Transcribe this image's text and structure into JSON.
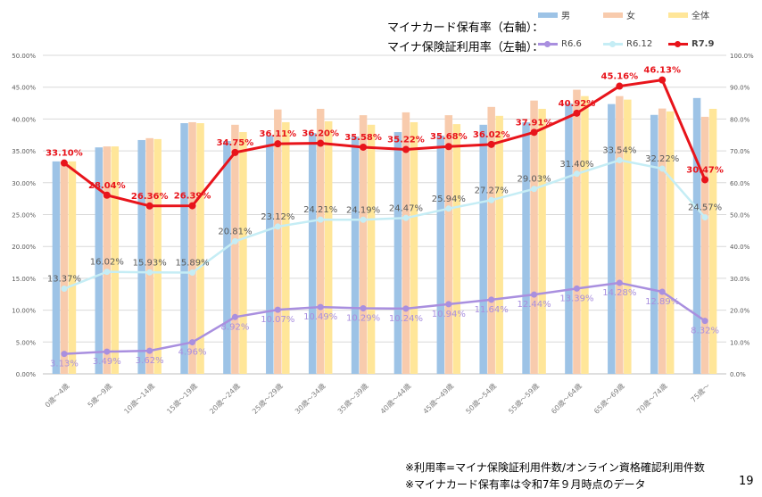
{
  "legend": {
    "bar_title": "マイナカード保有率（右軸）：",
    "line_title": "マイナ保険証利用率（左軸）：",
    "bars": [
      {
        "name": "男",
        "color": "#9DC3E6"
      },
      {
        "name": "女",
        "color": "#F8CBAD"
      },
      {
        "name": "全体",
        "color": "#FFE699"
      }
    ],
    "lines": [
      {
        "name": "R6.6",
        "color": "#A98FDF"
      },
      {
        "name": "R6.12",
        "color": "#C5EDF5"
      },
      {
        "name": "R7.9",
        "color": "#E8141B"
      }
    ]
  },
  "footnotes": [
    "※利用率=マイナ保険証利用件数/オンライン資格確認利用件数",
    "※マイナカード保有率は令和7年９月時点のデータ"
  ],
  "page_number": "19",
  "chart_data": {
    "type": "bar+line",
    "categories": [
      "0歳～4歳",
      "5歳～9歳",
      "10歳～14歳",
      "15歳～19歳",
      "20歳～24歳",
      "25歳～29歳",
      "30歳～34歳",
      "35歳～39歳",
      "40歳～44歳",
      "45歳～49歳",
      "50歳～54歳",
      "55歳～59歳",
      "60歳～64歳",
      "65歳～69歳",
      "70歳～74歳",
      "75歳～"
    ],
    "left_axis": {
      "range": [
        0,
        50
      ],
      "ticks": [
        "0.00%",
        "5.00%",
        "10.00%",
        "15.00%",
        "20.00%",
        "25.00%",
        "30.00%",
        "35.00%",
        "40.00%",
        "45.00%",
        "50.00%"
      ]
    },
    "right_axis": {
      "range": [
        0,
        100
      ],
      "ticks": [
        "0.0%",
        "10.0%",
        "20.0%",
        "30.0%",
        "40.0%",
        "50.0%",
        "60.0%",
        "70.0%",
        "80.0%",
        "90.0%",
        "100.0%"
      ]
    },
    "grid": true,
    "bar_series": [
      {
        "name": "男",
        "axis": "right",
        "values": [
          66.7,
          71.1,
          73.4,
          78.7,
          73.1,
          74.9,
          75.6,
          74.5,
          75.9,
          74.8,
          78.2,
          79.0,
          84.9,
          84.7,
          81.3,
          86.6
        ]
      },
      {
        "name": "女",
        "axis": "right",
        "values": [
          66.7,
          71.4,
          74.0,
          79.0,
          78.2,
          83.0,
          83.2,
          81.2,
          82.1,
          81.2,
          83.8,
          85.8,
          89.2,
          87.2,
          83.3,
          80.7
        ]
      },
      {
        "name": "全体",
        "axis": "right",
        "values": [
          66.7,
          71.4,
          73.7,
          78.7,
          75.9,
          79.0,
          79.3,
          78.2,
          79.0,
          78.4,
          81.0,
          83.2,
          87.2,
          86.1,
          82.4,
          83.2
        ]
      }
    ],
    "line_series": [
      {
        "name": "R6.6",
        "axis": "left",
        "values": [
          3.13,
          3.49,
          3.62,
          4.96,
          8.92,
          10.07,
          10.49,
          10.29,
          10.24,
          10.94,
          11.64,
          12.44,
          13.39,
          14.28,
          12.89,
          8.32
        ],
        "labels": [
          "3.13%",
          "3.49%",
          "3.62%",
          "4.96%",
          "8.92%",
          "10.07%",
          "10.49%",
          "10.29%",
          "10.24%",
          "10.94%",
          "11.64%",
          "12.44%",
          "13.39%",
          "14.28%",
          "12.89%",
          "8.32%"
        ]
      },
      {
        "name": "R6.12",
        "axis": "left",
        "values": [
          13.37,
          16.02,
          15.93,
          15.89,
          20.81,
          23.12,
          24.21,
          24.19,
          24.47,
          25.94,
          27.27,
          29.03,
          31.4,
          33.54,
          32.22,
          24.57
        ],
        "labels": [
          "13.37%",
          "16.02%",
          "15.93%",
          "15.89%",
          "20.81%",
          "23.12%",
          "24.21%",
          "24.19%",
          "24.47%",
          "25.94%",
          "27.27%",
          "29.03%",
          "31.40%",
          "33.54%",
          "32.22%",
          "24.57%"
        ]
      },
      {
        "name": "R7.9",
        "axis": "left",
        "values": [
          33.1,
          28.04,
          26.36,
          26.39,
          34.75,
          36.11,
          36.2,
          35.58,
          35.22,
          35.68,
          36.02,
          37.91,
          40.92,
          45.16,
          46.13,
          30.47
        ],
        "labels": [
          "33.10%",
          "28.04%",
          "26.36%",
          "26.39%",
          "34.75%",
          "36.11%",
          "36.20%",
          "35.58%",
          "35.22%",
          "35.68%",
          "36.02%",
          "37.91%",
          "40.92%",
          "45.16%",
          "46.13%",
          "30.47%"
        ]
      }
    ]
  }
}
